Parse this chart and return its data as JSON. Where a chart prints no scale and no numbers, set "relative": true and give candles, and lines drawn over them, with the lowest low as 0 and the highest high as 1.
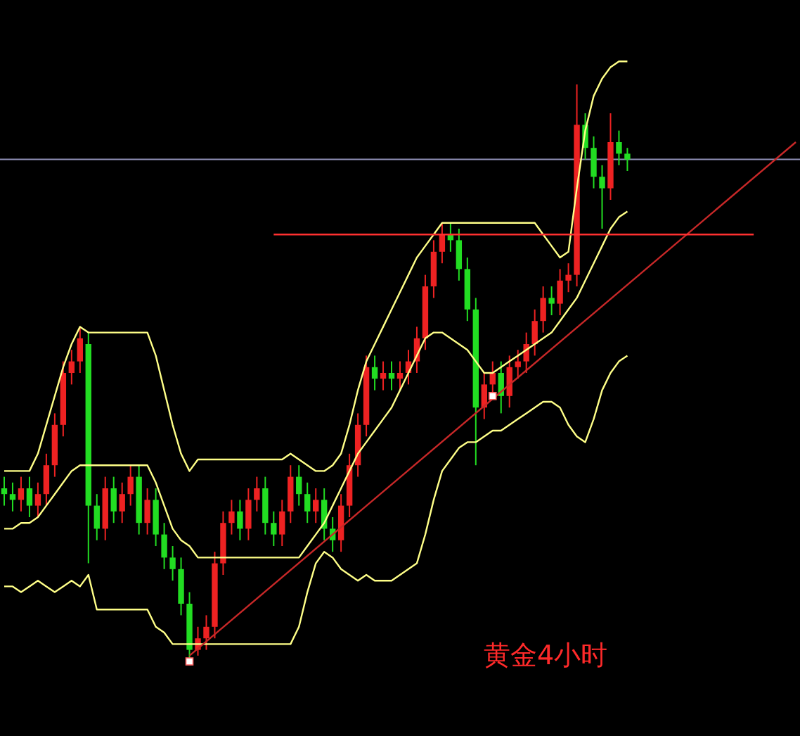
{
  "chart_data": {
    "type": "candlestick",
    "relative": true,
    "categories": [
      null,
      null,
      null,
      null,
      null,
      null,
      null,
      null,
      null,
      null,
      null,
      null,
      null,
      null,
      null,
      null,
      null,
      null,
      null,
      null,
      null,
      null,
      null,
      null,
      null,
      null,
      null,
      null,
      null,
      null,
      null,
      null,
      null,
      null,
      null,
      null,
      null,
      null,
      null,
      null,
      null,
      null,
      null,
      null,
      null,
      null,
      null,
      null,
      null,
      null,
      null,
      null,
      null,
      null,
      null,
      null,
      null,
      null,
      null,
      null,
      null,
      null,
      null,
      null,
      null,
      null,
      null,
      null,
      null,
      null,
      null,
      null,
      null,
      null,
      null,
      null,
      null,
      null,
      null,
      null,
      null,
      null,
      null,
      null,
      null,
      null,
      null,
      null,
      null,
      null,
      null,
      null,
      null,
      null,
      null
    ],
    "ohlc": [
      [
        0.3,
        0.32,
        0.27,
        0.29
      ],
      [
        0.29,
        0.31,
        0.26,
        0.28
      ],
      [
        0.28,
        0.32,
        0.26,
        0.3
      ],
      [
        0.3,
        0.32,
        0.25,
        0.27
      ],
      [
        0.27,
        0.31,
        0.25,
        0.29
      ],
      [
        0.29,
        0.36,
        0.27,
        0.34
      ],
      [
        0.34,
        0.43,
        0.32,
        0.41
      ],
      [
        0.41,
        0.52,
        0.39,
        0.5
      ],
      [
        0.5,
        0.54,
        0.48,
        0.52
      ],
      [
        0.52,
        0.58,
        0.5,
        0.56
      ],
      [
        0.55,
        0.57,
        0.17,
        0.27
      ],
      [
        0.27,
        0.29,
        0.21,
        0.23
      ],
      [
        0.23,
        0.32,
        0.21,
        0.3
      ],
      [
        0.3,
        0.32,
        0.24,
        0.26
      ],
      [
        0.26,
        0.31,
        0.24,
        0.29
      ],
      [
        0.29,
        0.34,
        0.27,
        0.32
      ],
      [
        0.32,
        0.34,
        0.22,
        0.24
      ],
      [
        0.24,
        0.3,
        0.22,
        0.28
      ],
      [
        0.28,
        0.3,
        0.2,
        0.22
      ],
      [
        0.22,
        0.24,
        0.16,
        0.18
      ],
      [
        0.18,
        0.2,
        0.14,
        0.16
      ],
      [
        0.16,
        0.18,
        0.08,
        0.1
      ],
      [
        0.1,
        0.12,
        0,
        0.02
      ],
      [
        0.02,
        0.06,
        0.01,
        0.04
      ],
      [
        0.04,
        0.08,
        0.02,
        0.06
      ],
      [
        0.06,
        0.19,
        0.04,
        0.17
      ],
      [
        0.17,
        0.26,
        0.15,
        0.24
      ],
      [
        0.24,
        0.28,
        0.22,
        0.26
      ],
      [
        0.26,
        0.28,
        0.21,
        0.23
      ],
      [
        0.23,
        0.3,
        0.21,
        0.28
      ],
      [
        0.28,
        0.32,
        0.26,
        0.3
      ],
      [
        0.3,
        0.32,
        0.22,
        0.24
      ],
      [
        0.24,
        0.26,
        0.2,
        0.22
      ],
      [
        0.22,
        0.28,
        0.2,
        0.26
      ],
      [
        0.26,
        0.34,
        0.24,
        0.32
      ],
      [
        0.32,
        0.34,
        0.27,
        0.29
      ],
      [
        0.29,
        0.31,
        0.24,
        0.26
      ],
      [
        0.26,
        0.3,
        0.24,
        0.28
      ],
      [
        0.28,
        0.3,
        0.21,
        0.23
      ],
      [
        0.23,
        0.25,
        0.19,
        0.21
      ],
      [
        0.21,
        0.29,
        0.19,
        0.27
      ],
      [
        0.27,
        0.36,
        0.25,
        0.34
      ],
      [
        0.34,
        0.43,
        0.32,
        0.41
      ],
      [
        0.41,
        0.53,
        0.39,
        0.51
      ],
      [
        0.51,
        0.53,
        0.47,
        0.49
      ],
      [
        0.49,
        0.52,
        0.47,
        0.5
      ],
      [
        0.5,
        0.52,
        0.47,
        0.49
      ],
      [
        0.49,
        0.52,
        0.47,
        0.5
      ],
      [
        0.5,
        0.54,
        0.48,
        0.52
      ],
      [
        0.52,
        0.58,
        0.5,
        0.56
      ],
      [
        0.56,
        0.67,
        0.54,
        0.65
      ],
      [
        0.65,
        0.73,
        0.63,
        0.71
      ],
      [
        0.71,
        0.76,
        0.69,
        0.74
      ],
      [
        0.74,
        0.76,
        0.71,
        0.73
      ],
      [
        0.73,
        0.75,
        0.66,
        0.68
      ],
      [
        0.68,
        0.7,
        0.59,
        0.61
      ],
      [
        0.61,
        0.63,
        0.34,
        0.44
      ],
      [
        0.44,
        0.5,
        0.42,
        0.48
      ],
      [
        0.48,
        0.52,
        0.46,
        0.5
      ],
      [
        0.5,
        0.52,
        0.43,
        0.46
      ],
      [
        0.46,
        0.53,
        0.44,
        0.51
      ],
      [
        0.51,
        0.54,
        0.49,
        0.52
      ],
      [
        0.52,
        0.57,
        0.5,
        0.55
      ],
      [
        0.55,
        0.61,
        0.53,
        0.59
      ],
      [
        0.59,
        0.65,
        0.57,
        0.63
      ],
      [
        0.63,
        0.65,
        0.6,
        0.62
      ],
      [
        0.62,
        0.68,
        0.6,
        0.66
      ],
      [
        0.66,
        0.69,
        0.64,
        0.67
      ],
      [
        0.67,
        1,
        0.65,
        0.93
      ],
      [
        0.93,
        0.95,
        0.87,
        0.89
      ],
      [
        0.89,
        0.91,
        0.82,
        0.84
      ],
      [
        0.84,
        0.86,
        0.75,
        0.82
      ],
      [
        0.82,
        0.95,
        0.8,
        0.9
      ],
      [
        0.9,
        0.92,
        0.86,
        0.88
      ],
      [
        0.88,
        0.89,
        0.85,
        0.87
      ],
      null,
      null,
      null,
      null,
      null,
      null,
      null,
      null,
      null,
      null,
      null,
      null,
      null,
      null,
      null,
      null,
      null,
      null,
      null,
      null
    ],
    "colors": [
      "#22dd22",
      "#22dd22",
      "#ee2222",
      "#22dd22",
      "#ee2222",
      "#ee2222",
      "#ee2222",
      "#ee2222",
      "#ee2222",
      "#ee2222",
      "#22dd22",
      "#22dd22",
      "#ee2222",
      "#22dd22",
      "#ee2222",
      "#ee2222",
      "#22dd22",
      "#ee2222",
      "#22dd22",
      "#22dd22",
      "#22dd22",
      "#22dd22",
      "#22dd22",
      "#ee2222",
      "#ee2222",
      "#ee2222",
      "#ee2222",
      "#ee2222",
      "#22dd22",
      "#ee2222",
      "#ee2222",
      "#22dd22",
      "#22dd22",
      "#ee2222",
      "#ee2222",
      "#22dd22",
      "#22dd22",
      "#ee2222",
      "#22dd22",
      "#22dd22",
      "#ee2222",
      "#ee2222",
      "#ee2222",
      "#ee2222",
      "#22dd22",
      "#ee2222",
      "#22dd22",
      "#ee2222",
      "#ee2222",
      "#ee2222",
      "#ee2222",
      "#ee2222",
      "#ee2222",
      "#22dd22",
      "#22dd22",
      "#22dd22",
      "#22dd22",
      "#ee2222",
      "#ee2222",
      "#22dd22",
      "#ee2222",
      "#ee2222",
      "#ee2222",
      "#ee2222",
      "#ee2222",
      "#22dd22",
      "#ee2222",
      "#ee2222",
      "#ee2222",
      "#22dd22",
      "#22dd22",
      "#22dd22",
      "#ee2222",
      "#22dd22",
      "#22dd22",
      null,
      null,
      null,
      null,
      null,
      null,
      null,
      null,
      null,
      null,
      null,
      null,
      null,
      null,
      null,
      null,
      null,
      null,
      null,
      null
    ],
    "series": [
      {
        "type": "line",
        "color": "#ffff88",
        "values": [
          0.33,
          0.33,
          0.33,
          0.33,
          0.36,
          0.41,
          0.46,
          0.51,
          0.55,
          0.58,
          0.57,
          0.57,
          0.57,
          0.57,
          0.57,
          0.57,
          0.57,
          0.57,
          0.53,
          0.47,
          0.41,
          0.36,
          0.33,
          0.35,
          0.35,
          0.35,
          0.35,
          0.35,
          0.35,
          0.35,
          0.35,
          0.35,
          0.35,
          0.35,
          0.36,
          0.35,
          0.34,
          0.33,
          0.33,
          0.34,
          0.36,
          0.41,
          0.47,
          0.52,
          0.55,
          0.58,
          0.61,
          0.64,
          0.67,
          0.7,
          0.72,
          0.74,
          0.76,
          0.76,
          0.76,
          0.76,
          0.76,
          0.76,
          0.76,
          0.76,
          0.76,
          0.76,
          0.76,
          0.76,
          0.74,
          0.72,
          0.7,
          0.71,
          0.82,
          0.92,
          0.98,
          1.01,
          1.03,
          1.04,
          1.04,
          null,
          null,
          null,
          null,
          null,
          null,
          null,
          null,
          null,
          null,
          null,
          null,
          null,
          null,
          null,
          null,
          null,
          null,
          null,
          null
        ]
      },
      {
        "type": "line",
        "color": "#ffff88",
        "values": [
          0.23,
          0.23,
          0.24,
          0.24,
          0.25,
          0.27,
          0.29,
          0.31,
          0.33,
          0.34,
          0.34,
          0.34,
          0.34,
          0.34,
          0.34,
          0.34,
          0.34,
          0.34,
          0.31,
          0.27,
          0.23,
          0.21,
          0.2,
          0.18,
          0.18,
          0.18,
          0.18,
          0.18,
          0.18,
          0.18,
          0.18,
          0.18,
          0.18,
          0.18,
          0.18,
          0.18,
          0.2,
          0.22,
          0.24,
          0.27,
          0.3,
          0.33,
          0.36,
          0.38,
          0.4,
          0.42,
          0.44,
          0.47,
          0.5,
          0.53,
          0.56,
          0.57,
          0.57,
          0.56,
          0.55,
          0.54,
          0.52,
          0.5,
          0.5,
          0.51,
          0.52,
          0.53,
          0.54,
          0.55,
          0.56,
          0.57,
          0.59,
          0.61,
          0.63,
          0.66,
          0.69,
          0.72,
          0.75,
          0.77,
          0.78,
          null,
          null,
          null,
          null,
          null,
          null,
          null,
          null,
          null,
          null,
          null,
          null,
          null,
          null,
          null,
          null,
          null,
          null,
          null,
          null
        ]
      },
      {
        "type": "line",
        "color": "#ffff88",
        "values": [
          0.13,
          0.13,
          0.12,
          0.13,
          0.14,
          0.13,
          0.12,
          0.13,
          0.14,
          0.13,
          0.15,
          0.09,
          0.09,
          0.09,
          0.09,
          0.09,
          0.09,
          0.09,
          0.06,
          0.05,
          0.03,
          0.03,
          0.03,
          0.03,
          0.03,
          0.03,
          0.03,
          0.03,
          0.03,
          0.03,
          0.03,
          0.03,
          0.03,
          0.03,
          0.03,
          0.06,
          0.12,
          0.17,
          0.19,
          0.18,
          0.16,
          0.15,
          0.14,
          0.15,
          0.14,
          0.14,
          0.14,
          0.15,
          0.16,
          0.17,
          0.22,
          0.28,
          0.33,
          0.35,
          0.37,
          0.38,
          0.38,
          0.39,
          0.4,
          0.4,
          0.41,
          0.42,
          0.43,
          0.44,
          0.45,
          0.45,
          0.44,
          0.41,
          0.39,
          0.38,
          0.42,
          0.47,
          0.5,
          0.52,
          0.53,
          null,
          null,
          null,
          null,
          null,
          null,
          null,
          null,
          null,
          null,
          null,
          null,
          null,
          null,
          null,
          null,
          null,
          null,
          null,
          null
        ]
      },
      {
        "type": "line",
        "color": "#c82828",
        "values": [
          null,
          null,
          null,
          null,
          null,
          null,
          null,
          null,
          null,
          null,
          null,
          null,
          null,
          null,
          null,
          null,
          null,
          null,
          null,
          null,
          null,
          null,
          0.01,
          null,
          null,
          null,
          null,
          null,
          null,
          null,
          null,
          null,
          null,
          null,
          null,
          null,
          null,
          null,
          null,
          null,
          null,
          null,
          null,
          null,
          null,
          null,
          null,
          null,
          null,
          null,
          null,
          null,
          null,
          null,
          null,
          null,
          null,
          null,
          null,
          null,
          null,
          null,
          null,
          null,
          null,
          null,
          null,
          null,
          null,
          null,
          null,
          null,
          null,
          null,
          null,
          null,
          null,
          null,
          null,
          null,
          null,
          null,
          null,
          null,
          null,
          null,
          null,
          null,
          null,
          null,
          null,
          null,
          null,
          null,
          0.9
        ]
      },
      {
        "type": "line",
        "color": "#ff3030",
        "values": [
          null,
          null,
          null,
          null,
          null,
          null,
          null,
          null,
          null,
          null,
          null,
          null,
          null,
          null,
          null,
          null,
          null,
          null,
          null,
          null,
          null,
          null,
          null,
          null,
          null,
          null,
          null,
          null,
          null,
          null,
          null,
          null,
          0.74,
          null,
          null,
          null,
          null,
          null,
          null,
          null,
          null,
          null,
          null,
          null,
          null,
          null,
          null,
          null,
          null,
          null,
          null,
          null,
          null,
          null,
          null,
          null,
          null,
          null,
          null,
          null,
          null,
          null,
          null,
          null,
          null,
          null,
          null,
          null,
          null,
          null,
          null,
          null,
          null,
          null,
          null,
          null,
          null,
          null,
          null,
          null,
          null,
          null,
          null,
          null,
          null,
          null,
          null,
          null,
          null,
          0.74,
          null,
          null,
          null,
          null,
          null
        ]
      },
      {
        "type": "scatter",
        "color": "#ffffff",
        "marker": "square",
        "values": [
          null,
          null,
          null,
          null,
          null,
          null,
          null,
          null,
          null,
          null,
          null,
          null,
          null,
          null,
          null,
          null,
          null,
          null,
          null,
          null,
          null,
          null,
          0,
          null,
          null,
          null,
          null,
          null,
          null,
          null,
          null,
          null,
          null,
          null,
          null,
          null,
          null,
          null,
          null,
          null,
          null,
          null,
          null,
          null,
          null,
          null,
          null,
          null,
          null,
          null,
          null,
          null,
          null,
          null,
          null,
          null,
          null,
          null,
          0.46,
          null,
          null,
          null,
          null,
          null,
          null,
          null,
          null,
          null,
          null,
          null,
          null,
          null,
          null,
          null,
          null,
          null,
          null,
          null,
          null,
          null,
          null,
          null,
          null,
          null,
          null,
          null,
          null,
          null,
          null,
          null,
          null,
          null,
          null,
          null,
          null
        ]
      }
    ],
    "ref_lines": [
      {
        "axis": "y",
        "value": 0.87,
        "color": "#9090b8"
      }
    ],
    "annotations": [
      "黄金4小时"
    ],
    "grid": false
  }
}
